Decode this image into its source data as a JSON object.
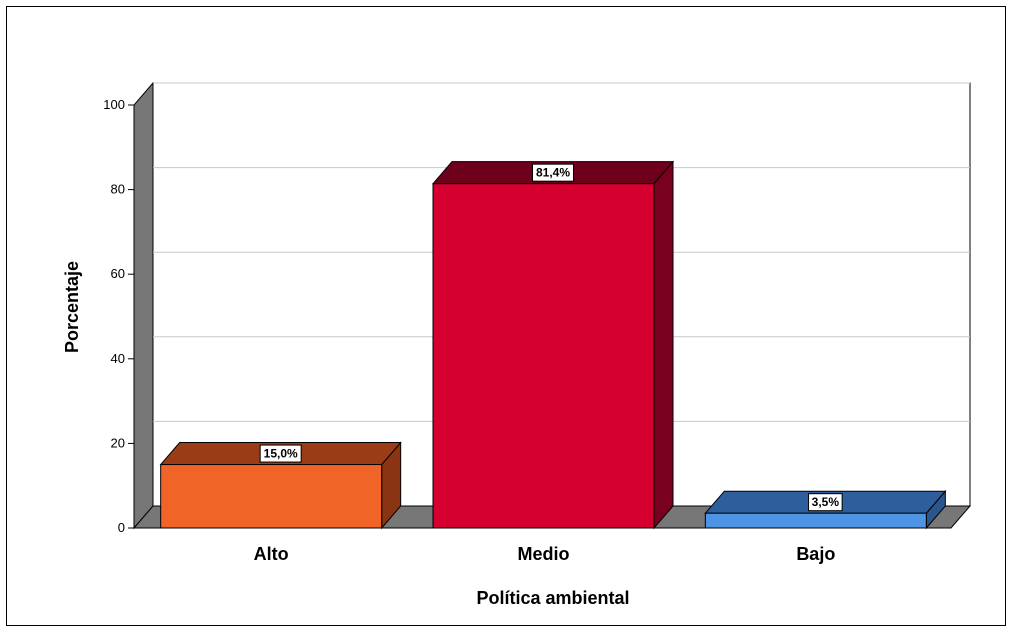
{
  "chart_data": {
    "type": "bar",
    "title": "",
    "xlabel": "Política ambiental",
    "ylabel": "Porcentaje",
    "categories": [
      "Alto",
      "Medio",
      "Bajo"
    ],
    "values": [
      15.0,
      81.4,
      3.5
    ],
    "data_labels": [
      "15,0%",
      "81,4%",
      "3,5%"
    ],
    "ylim": [
      0,
      100
    ],
    "yticks": [
      "0",
      "20",
      "40",
      "60",
      "80",
      "100"
    ],
    "grid": true,
    "legend": "none",
    "style": "3d",
    "colors": {
      "bars": [
        "#F06428",
        "#D5002F",
        "#4F94E4"
      ],
      "bar_tops": [
        "#9A3D17",
        "#6E001B",
        "#2E5F9C"
      ],
      "bar_sides": [
        "#8A3414",
        "#7A001F",
        "#2B568C"
      ],
      "floor": "#777777",
      "back_wall": "#ffffff",
      "side_wall": "#777777",
      "gridline": "#c8c8c8"
    }
  }
}
